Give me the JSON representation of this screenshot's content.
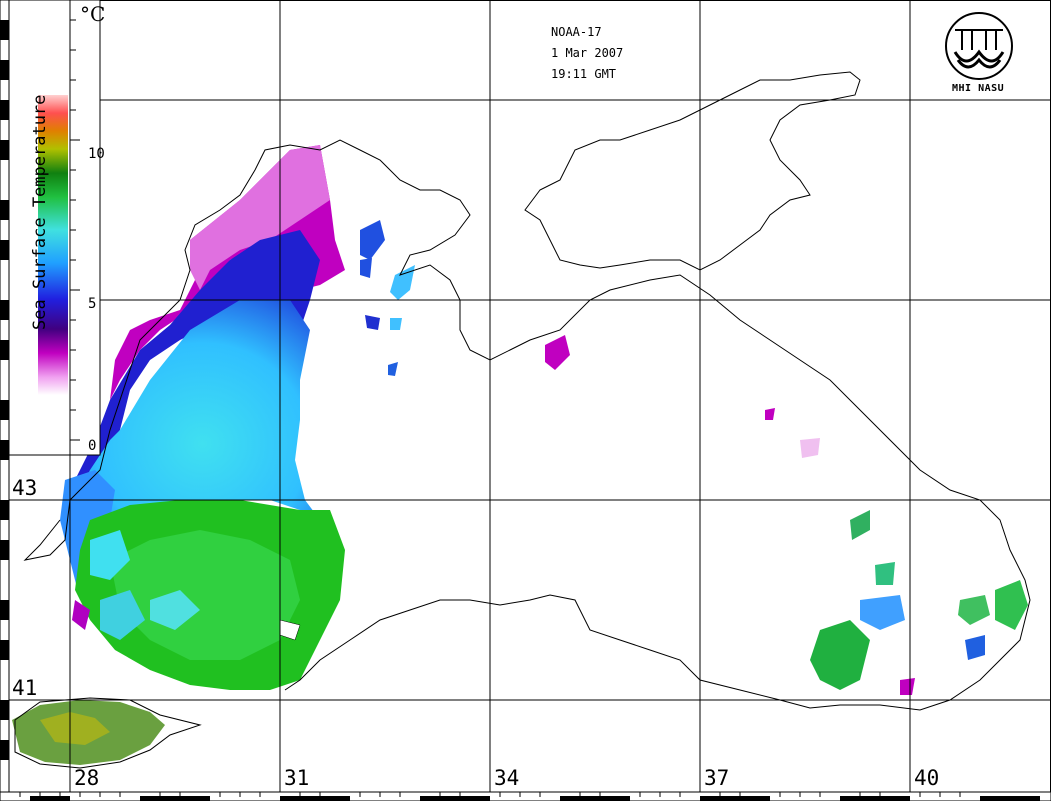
{
  "satellite": "NOAA-17",
  "date": "1 Mar 2007",
  "time": "19:11 GMT",
  "logo_text": "MHI NASU",
  "colorbar": {
    "title": "Sea Surface Temperature",
    "unit": "°C",
    "ticks": [
      "10",
      "5",
      "0"
    ],
    "range": [
      0,
      12
    ]
  },
  "latitudes": [
    "43",
    "41"
  ],
  "longitudes": [
    "28",
    "31",
    "34",
    "37",
    "40"
  ],
  "colors": {
    "coast": "#000000",
    "grid": "#000000",
    "sst_cold": "#ffffff",
    "sst_purple": "#c000c0",
    "sst_blue": "#2020e0",
    "sst_cyan": "#30d0ff",
    "sst_green": "#20c020",
    "sst_yellow": "#c0c000",
    "sst_warm": "#ff6060"
  }
}
